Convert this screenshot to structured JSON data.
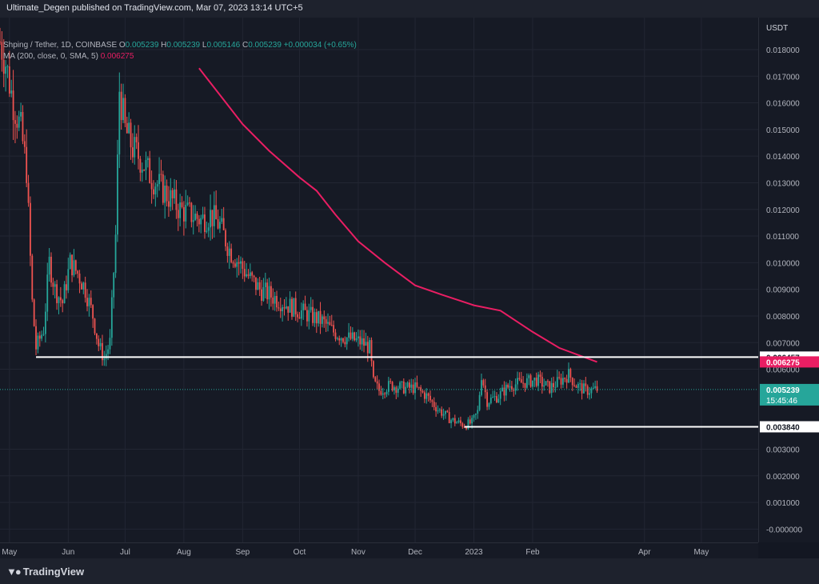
{
  "header": {
    "text": "Ultimate_Degen published on TradingView.com, Mar 07, 2023 13:14 UTC+5"
  },
  "legend": {
    "symbol": "Shping / Tether, 1D, COINBASE",
    "o_label": "O",
    "o_value": "0.005239",
    "h_label": "H",
    "h_value": "0.005239",
    "l_label": "L",
    "l_value": "0.005146",
    "c_label": "C",
    "c_value": "0.005239",
    "change": "+0.000034 (+0.65%)",
    "ma_label": "MA (200, close, 0, SMA, 5)",
    "ma_value": "0.006275"
  },
  "price_axis": {
    "currency": "USDT"
  },
  "footer": {
    "brand": "TradingView"
  },
  "colors": {
    "up": "#26a69a",
    "down": "#ef5350",
    "ma": "#e91e63",
    "level": "#ffffff",
    "current_price_bg": "#26a69a",
    "ma_label_bg": "#e91e63"
  },
  "chart_data": {
    "type": "candlestick",
    "title": "Shping / Tether, 1D, COINBASE",
    "ylabel": "USDT",
    "ylim": [
      -0.0005,
      0.0192
    ],
    "y_ticks": [
      "0.018000",
      "0.017000",
      "0.016000",
      "0.015000",
      "0.014000",
      "0.013000",
      "0.012000",
      "0.011000",
      "0.010000",
      "0.009000",
      "0.008000",
      "0.007000",
      "0.006000",
      "0.003000",
      "0.002000",
      "0.001000",
      "-0.000000"
    ],
    "x_range": [
      "2022-04-26",
      "2023-05-31"
    ],
    "x_ticks": [
      {
        "label": "May",
        "date": "2022-05-01"
      },
      {
        "label": "Jun",
        "date": "2022-06-01"
      },
      {
        "label": "Jul",
        "date": "2022-07-01"
      },
      {
        "label": "Aug",
        "date": "2022-08-01"
      },
      {
        "label": "Sep",
        "date": "2022-09-01"
      },
      {
        "label": "Oct",
        "date": "2022-10-01"
      },
      {
        "label": "Nov",
        "date": "2022-11-01"
      },
      {
        "label": "Dec",
        "date": "2022-12-01"
      },
      {
        "label": "2023",
        "date": "2023-01-01"
      },
      {
        "label": "Feb",
        "date": "2023-02-01"
      },
      {
        "label": "Apr",
        "date": "2023-04-01"
      },
      {
        "label": "May",
        "date": "2023-05-01"
      }
    ],
    "price_anchors": [
      [
        "2022-04-26",
        0.0183
      ],
      [
        "2022-04-29",
        0.0175
      ],
      [
        "2022-05-03",
        0.016
      ],
      [
        "2022-05-07",
        0.015
      ],
      [
        "2022-05-10",
        0.0135
      ],
      [
        "2022-05-13",
        0.0085
      ],
      [
        "2022-05-15",
        0.0068
      ],
      [
        "2022-05-19",
        0.0075
      ],
      [
        "2022-05-22",
        0.01
      ],
      [
        "2022-05-25",
        0.009
      ],
      [
        "2022-05-29",
        0.0085
      ],
      [
        "2022-06-02",
        0.01
      ],
      [
        "2022-06-06",
        0.0096
      ],
      [
        "2022-06-10",
        0.009
      ],
      [
        "2022-06-14",
        0.008
      ],
      [
        "2022-06-17",
        0.0069
      ],
      [
        "2022-06-20",
        0.0064
      ],
      [
        "2022-06-23",
        0.007
      ],
      [
        "2022-06-26",
        0.011
      ],
      [
        "2022-06-28",
        0.0165
      ],
      [
        "2022-07-01",
        0.015
      ],
      [
        "2022-07-05",
        0.0143
      ],
      [
        "2022-07-10",
        0.0138
      ],
      [
        "2022-07-15",
        0.0132
      ],
      [
        "2022-07-20",
        0.0128
      ],
      [
        "2022-07-25",
        0.0124
      ],
      [
        "2022-07-30",
        0.012
      ],
      [
        "2022-08-05",
        0.0118
      ],
      [
        "2022-08-10",
        0.0116
      ],
      [
        "2022-08-15",
        0.0118
      ],
      [
        "2022-08-20",
        0.0114
      ],
      [
        "2022-08-25",
        0.0105
      ],
      [
        "2022-08-30",
        0.01
      ],
      [
        "2022-09-05",
        0.0094
      ],
      [
        "2022-09-10",
        0.009
      ],
      [
        "2022-09-15",
        0.0088
      ],
      [
        "2022-09-20",
        0.0086
      ],
      [
        "2022-09-25",
        0.0084
      ],
      [
        "2022-10-01",
        0.0082
      ],
      [
        "2022-10-07",
        0.008
      ],
      [
        "2022-10-13",
        0.0078
      ],
      [
        "2022-10-19",
        0.0074
      ],
      [
        "2022-10-25",
        0.0072
      ],
      [
        "2022-10-30",
        0.0071
      ],
      [
        "2022-11-03",
        0.007
      ],
      [
        "2022-11-07",
        0.0068
      ],
      [
        "2022-11-09",
        0.0055
      ],
      [
        "2022-11-12",
        0.0052
      ],
      [
        "2022-11-18",
        0.0054
      ],
      [
        "2022-11-25",
        0.0053
      ],
      [
        "2022-12-01",
        0.0053
      ],
      [
        "2022-12-07",
        0.005
      ],
      [
        "2022-12-13",
        0.0045
      ],
      [
        "2022-12-20",
        0.0041
      ],
      [
        "2022-12-27",
        0.0039
      ],
      [
        "2022-12-31",
        0.004
      ],
      [
        "2023-01-03",
        0.0044
      ],
      [
        "2023-01-05",
        0.0058
      ],
      [
        "2023-01-08",
        0.0048
      ],
      [
        "2023-01-14",
        0.005
      ],
      [
        "2023-01-20",
        0.0054
      ],
      [
        "2023-01-27",
        0.0055
      ],
      [
        "2023-02-03",
        0.0056
      ],
      [
        "2023-02-10",
        0.0053
      ],
      [
        "2023-02-16",
        0.0056
      ],
      [
        "2023-02-20",
        0.0058
      ],
      [
        "2023-02-24",
        0.0054
      ],
      [
        "2023-03-01",
        0.0052
      ],
      [
        "2023-03-07",
        0.005239
      ]
    ],
    "ma_200": [
      [
        "2022-08-09",
        0.0173
      ],
      [
        "2022-08-20",
        0.0163
      ],
      [
        "2022-09-01",
        0.0152
      ],
      [
        "2022-09-15",
        0.0142
      ],
      [
        "2022-10-01",
        0.0132
      ],
      [
        "2022-10-10",
        0.0127
      ],
      [
        "2022-10-20",
        0.0118
      ],
      [
        "2022-11-01",
        0.0108
      ],
      [
        "2022-11-15",
        0.01
      ],
      [
        "2022-12-01",
        0.00915
      ],
      [
        "2022-12-15",
        0.0088
      ],
      [
        "2023-01-01",
        0.0084
      ],
      [
        "2023-01-15",
        0.0082
      ],
      [
        "2023-02-01",
        0.0074
      ],
      [
        "2023-02-15",
        0.0068
      ],
      [
        "2023-03-07",
        0.006275
      ]
    ],
    "horizontal_levels": [
      {
        "value": 0.006457,
        "label": "0.006457",
        "from": "2022-05-15",
        "to": "2023-05-31"
      },
      {
        "value": 0.00384,
        "label": "0.003840",
        "from": "2022-12-27",
        "to": "2023-05-31"
      }
    ],
    "current_price": {
      "value": 0.005239,
      "label": "0.005239",
      "countdown": "15:45:46"
    },
    "ma_last": {
      "value": 0.006275,
      "label": "0.006275"
    }
  }
}
